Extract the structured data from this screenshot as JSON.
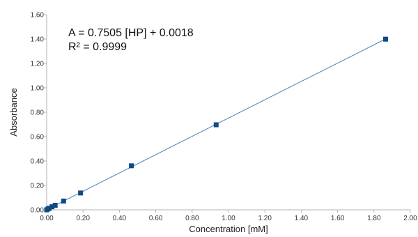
{
  "chart_data": {
    "type": "scatter",
    "title": "",
    "xlabel": "Concentration [mM]",
    "ylabel": "Absorbance",
    "xlim": [
      0,
      2.0
    ],
    "ylim": [
      0,
      1.6
    ],
    "x_ticks": [
      "0.00",
      "0.20",
      "0.40",
      "0.60",
      "0.80",
      "1.00",
      "1.20",
      "1.40",
      "1.60",
      "1.80",
      "2.00"
    ],
    "y_ticks": [
      "0.00",
      "0.20",
      "0.40",
      "0.60",
      "0.80",
      "1.00",
      "1.20",
      "1.40",
      "1.60"
    ],
    "grid": false,
    "series": [
      {
        "x": [
          0.0,
          0.0073,
          0.0146,
          0.0292,
          0.0466,
          0.0932,
          0.1864,
          0.466,
          0.932,
          1.864
        ],
        "y": [
          0.0,
          0.007,
          0.013,
          0.025,
          0.037,
          0.072,
          0.138,
          0.361,
          0.697,
          1.399
        ]
      }
    ],
    "trendline": {
      "slope": 0.7505,
      "intercept": 0.0018
    },
    "annotations": {
      "equation": "A = 0.7505 [HP] + 0.0018",
      "r_squared": "R² = 0.9999"
    },
    "colors": {
      "marker": "#0e4a85",
      "line": "#4a7fb5",
      "axis": "#b3b3b3"
    }
  }
}
